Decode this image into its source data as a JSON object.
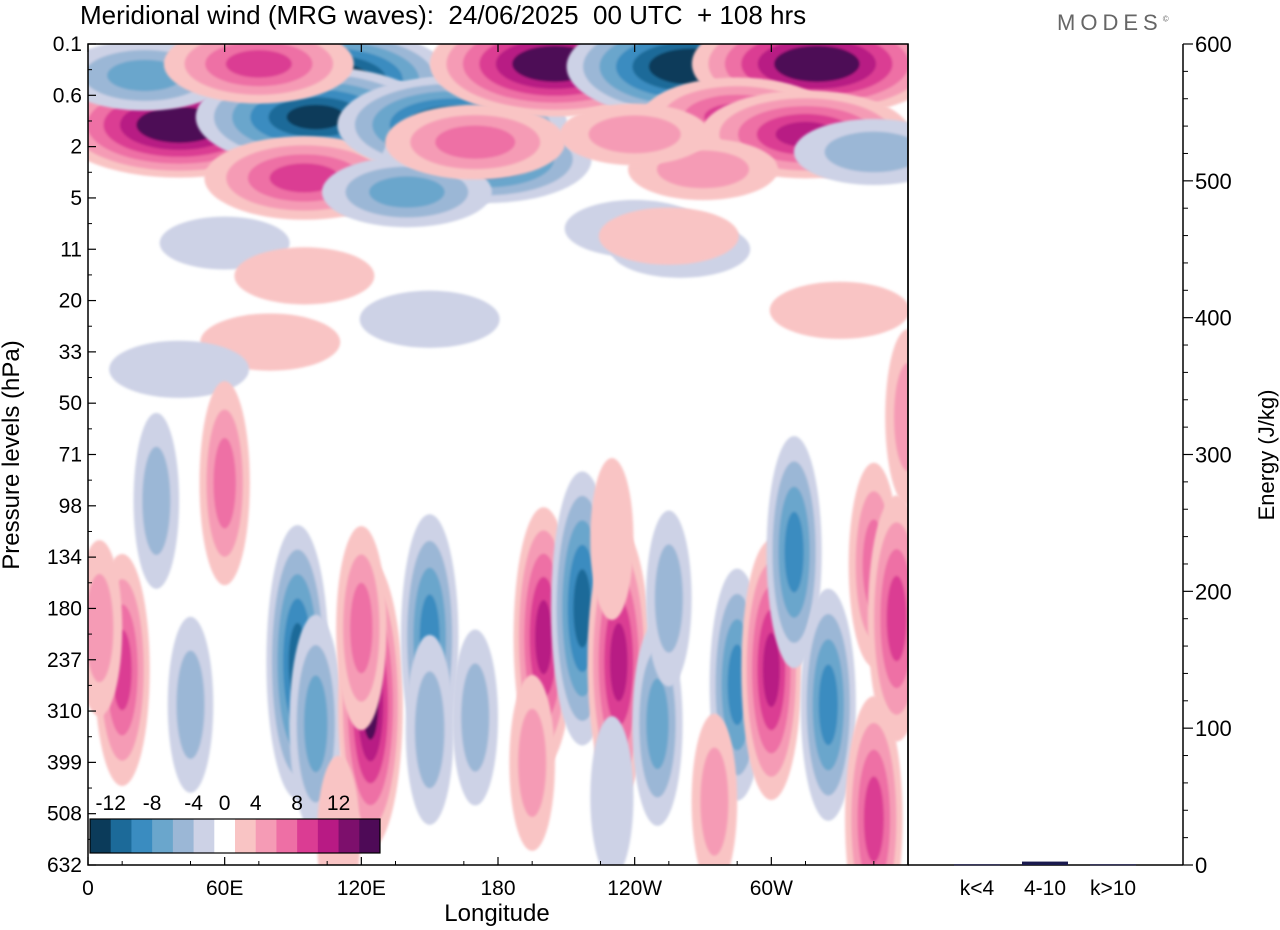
{
  "title": "Meridional wind (MRG waves):  24/06/2025  00 UTC  + 108 hrs",
  "brand": "MODES",
  "brand_mark": "©",
  "chart_data": [
    {
      "type": "heatmap",
      "title": "Meridional wind (MRG waves):  24/06/2025  00 UTC  + 108 hrs",
      "xlabel": "Longitude",
      "ylabel": "Pressure levels (hPa)",
      "x_ticks": [
        "0",
        "60E",
        "120E",
        "180",
        "120W",
        "60W"
      ],
      "y_ticks": [
        "0.1",
        "0.6",
        "2",
        "5",
        "11",
        "20",
        "33",
        "50",
        "71",
        "98",
        "134",
        "180",
        "237",
        "310",
        "399",
        "508",
        "632"
      ],
      "colorbar": {
        "labels": [
          "-12",
          "-8",
          "-4",
          "0",
          "4",
          "8",
          "12"
        ],
        "levels": [
          -14,
          -12,
          -10,
          -8,
          -6,
          -4,
          -2,
          2,
          4,
          6,
          8,
          10,
          12,
          14
        ],
        "colors": [
          "#0b3b5a",
          "#1c6a99",
          "#3a8cc0",
          "#6aa6cc",
          "#9bb7d6",
          "#cdd2e6",
          "#ffffff",
          "#f9c4c4",
          "#f59bb5",
          "#ee6fa5",
          "#db3c93",
          "#b81a84",
          "#7d0f6c",
          "#4e0a57"
        ]
      },
      "blobs": [
        {
          "lon": 40,
          "lev": 1.2,
          "value": 14
        },
        {
          "lon": 105,
          "lev": 0.35,
          "value": -14
        },
        {
          "lon": 100,
          "lev": 1.0,
          "value": -13
        },
        {
          "lon": 95,
          "lev": 3.5,
          "value": 9
        },
        {
          "lon": 160,
          "lev": 0.8,
          "value": -4
        },
        {
          "lon": 160,
          "lev": 1.2,
          "value": -12
        },
        {
          "lon": 175,
          "lev": 2.5,
          "value": -10
        },
        {
          "lon": 140,
          "lev": 4.5,
          "value": -6
        },
        {
          "lon": 25,
          "lev": 0.3,
          "value": -6
        },
        {
          "lon": 75,
          "lev": 0.2,
          "value": 8
        },
        {
          "lon": 205,
          "lev": 0.2,
          "value": 14
        },
        {
          "lon": 265,
          "lev": 0.22,
          "value": -14
        },
        {
          "lon": 320,
          "lev": 0.2,
          "value": 14
        },
        {
          "lon": 285,
          "lev": 1.0,
          "value": 8
        },
        {
          "lon": 315,
          "lev": 1.5,
          "value": 10
        },
        {
          "lon": 345,
          "lev": 2.2,
          "value": -5
        },
        {
          "lon": 270,
          "lev": 3.0,
          "value": 4
        },
        {
          "lon": 240,
          "lev": 1.5,
          "value": 4
        },
        {
          "lon": 240,
          "lev": 8,
          "value": -3
        },
        {
          "lon": 260,
          "lev": 11,
          "value": -3
        },
        {
          "lon": 255,
          "lev": 9,
          "value": 3
        },
        {
          "lon": 330,
          "lev": 22,
          "value": 3
        },
        {
          "lon": 150,
          "lev": 24,
          "value": -3
        },
        {
          "lon": 80,
          "lev": 30,
          "value": 3
        },
        {
          "lon": 40,
          "lev": 38,
          "value": -3
        },
        {
          "lon": 170,
          "lev": 1.8,
          "value": 7
        },
        {
          "lon": 60,
          "lev": 10,
          "value": -2
        },
        {
          "lon": 95,
          "lev": 15,
          "value": 3
        },
        {
          "lon": 360,
          "lev": 55,
          "value": 4
        },
        {
          "lon": 60,
          "lev": 85,
          "value": 6
        },
        {
          "lon": 30,
          "lev": 95,
          "value": -4
        },
        {
          "lon": 92,
          "lev": 240,
          "value": -11
        },
        {
          "lon": 100,
          "lev": 330,
          "value": -7
        },
        {
          "lon": 124,
          "lev": 300,
          "value": 12
        },
        {
          "lon": 120,
          "lev": 200,
          "value": 6
        },
        {
          "lon": 150,
          "lev": 210,
          "value": -9
        },
        {
          "lon": 150,
          "lev": 340,
          "value": -5
        },
        {
          "lon": 170,
          "lev": 320,
          "value": -4
        },
        {
          "lon": 200,
          "lev": 210,
          "value": 10
        },
        {
          "lon": 195,
          "lev": 400,
          "value": 4
        },
        {
          "lon": 217,
          "lev": 180,
          "value": -11
        },
        {
          "lon": 233,
          "lev": 240,
          "value": 11
        },
        {
          "lon": 230,
          "lev": 120,
          "value": 3
        },
        {
          "lon": 250,
          "lev": 330,
          "value": -6
        },
        {
          "lon": 255,
          "lev": 170,
          "value": -4
        },
        {
          "lon": 285,
          "lev": 270,
          "value": -8
        },
        {
          "lon": 300,
          "lev": 250,
          "value": 10
        },
        {
          "lon": 310,
          "lev": 130,
          "value": -8
        },
        {
          "lon": 325,
          "lev": 300,
          "value": -8
        },
        {
          "lon": 345,
          "lev": 140,
          "value": 6
        },
        {
          "lon": 355,
          "lev": 190,
          "value": 9
        },
        {
          "lon": 15,
          "lev": 250,
          "value": 8
        },
        {
          "lon": 5,
          "lev": 200,
          "value": 4
        },
        {
          "lon": 45,
          "lev": 300,
          "value": -4
        },
        {
          "lon": 275,
          "lev": 480,
          "value": 4
        },
        {
          "lon": 345,
          "lev": 520,
          "value": 9
        },
        {
          "lon": 230,
          "lev": 470,
          "value": -3
        },
        {
          "lon": 110,
          "lev": 560,
          "value": 3
        }
      ]
    },
    {
      "type": "bar",
      "ylabel": "Energy (J/kg)",
      "categories": [
        "k<4",
        "4-10",
        "k>10"
      ],
      "values": [
        0.5,
        2.5,
        0.5
      ],
      "ylim": [
        0,
        600
      ],
      "y_ticks": [
        "0",
        "100",
        "200",
        "300",
        "400",
        "500",
        "600"
      ],
      "bar_color": "#1a1a4e"
    }
  ]
}
